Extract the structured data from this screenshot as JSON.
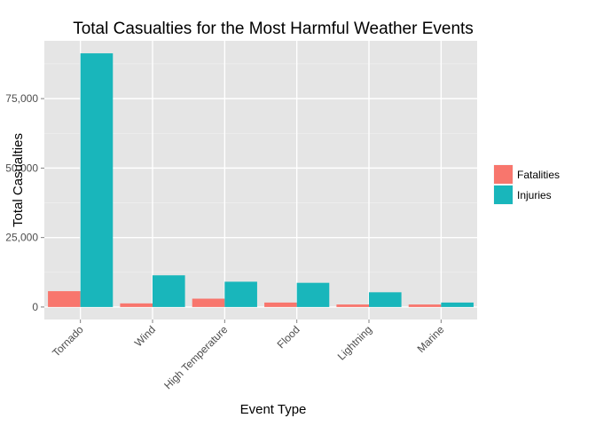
{
  "chart_data": {
    "type": "bar",
    "title": "Total Casualties for the Most Harmful Weather Events",
    "xlabel": "Event Type",
    "ylabel": "Total Casualties",
    "categories": [
      "Tornado",
      "Wind",
      "High Temperature",
      "Flood",
      "Lightning",
      "Marine"
    ],
    "series": [
      {
        "name": "Fatalities",
        "color": "#F8766D",
        "values": [
          5700,
          1300,
          3000,
          1600,
          900,
          900
        ]
      },
      {
        "name": "Injuries",
        "color": "#19B6BB",
        "values": [
          91300,
          11400,
          9100,
          8700,
          5300,
          1600
        ]
      }
    ],
    "ylim": [
      -4500,
      95800
    ],
    "yticks": [
      0,
      25000,
      50000,
      75000
    ],
    "ytick_labels": [
      "0",
      "25,000",
      "50,000",
      "75,000"
    ],
    "grid": true,
    "legend_position": "right",
    "panel_background": "#E5E5E5"
  }
}
